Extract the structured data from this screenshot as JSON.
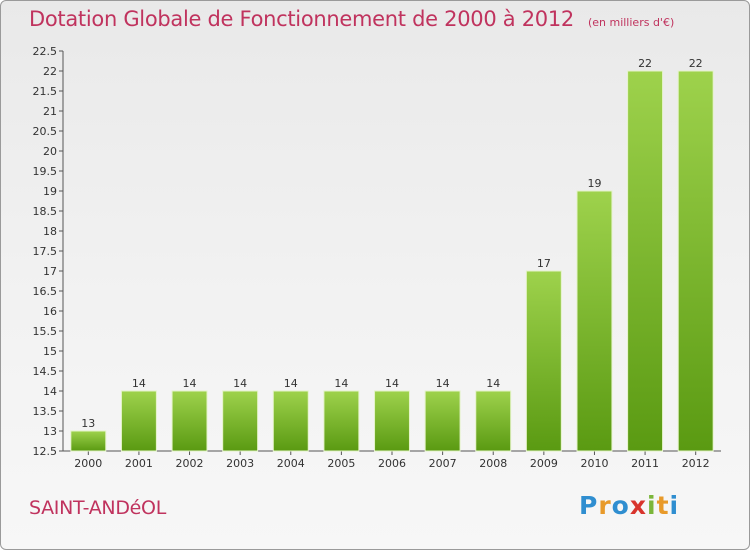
{
  "header": {
    "title": "Dotation Globale de Fonctionnement de 2000 à 2012",
    "subtitle": "(en milliers d'€)"
  },
  "footer": {
    "city": "SAINT-ANDéOL",
    "logo_letters": [
      {
        "ch": "P",
        "color": "#2f8ed0"
      },
      {
        "ch": "r",
        "color": "#e89a2a"
      },
      {
        "ch": "o",
        "color": "#2f8ed0"
      },
      {
        "ch": "x",
        "color": "#d8342c"
      },
      {
        "ch": "i",
        "color": "#7bb63a"
      },
      {
        "ch": "t",
        "color": "#e89a2a"
      },
      {
        "ch": "i",
        "color": "#2f8ed0"
      }
    ]
  },
  "colors": {
    "bar_light": "#9ed24c",
    "bar_dark": "#5a9a12",
    "accent": "#c0335e"
  },
  "chart_data": {
    "type": "bar",
    "categories": [
      "2000",
      "2001",
      "2002",
      "2003",
      "2004",
      "2005",
      "2006",
      "2007",
      "2008",
      "2009",
      "2010",
      "2011",
      "2012"
    ],
    "values": [
      13,
      14,
      14,
      14,
      14,
      14,
      14,
      14,
      14,
      17,
      19,
      22,
      22
    ],
    "value_labels": [
      "13",
      "14",
      "14",
      "14",
      "14",
      "14",
      "14",
      "14",
      "14",
      "17",
      "19",
      "22",
      "22"
    ],
    "ylim": [
      12.5,
      22.5
    ],
    "yticks": [
      12.5,
      13,
      13.5,
      14,
      14.5,
      15,
      15.5,
      16,
      16.5,
      17,
      17.5,
      18,
      18.5,
      19,
      19.5,
      20,
      20.5,
      21,
      21.5,
      22,
      22.5
    ],
    "ytick_labels": [
      "12.5",
      "13",
      "13.5",
      "14",
      "14.5",
      "15",
      "15.5",
      "16",
      "16.5",
      "17",
      "17.5",
      "18",
      "18.5",
      "19",
      "19.5",
      "20",
      "20.5",
      "21",
      "21.5",
      "22",
      "22.5"
    ],
    "grid": false
  }
}
